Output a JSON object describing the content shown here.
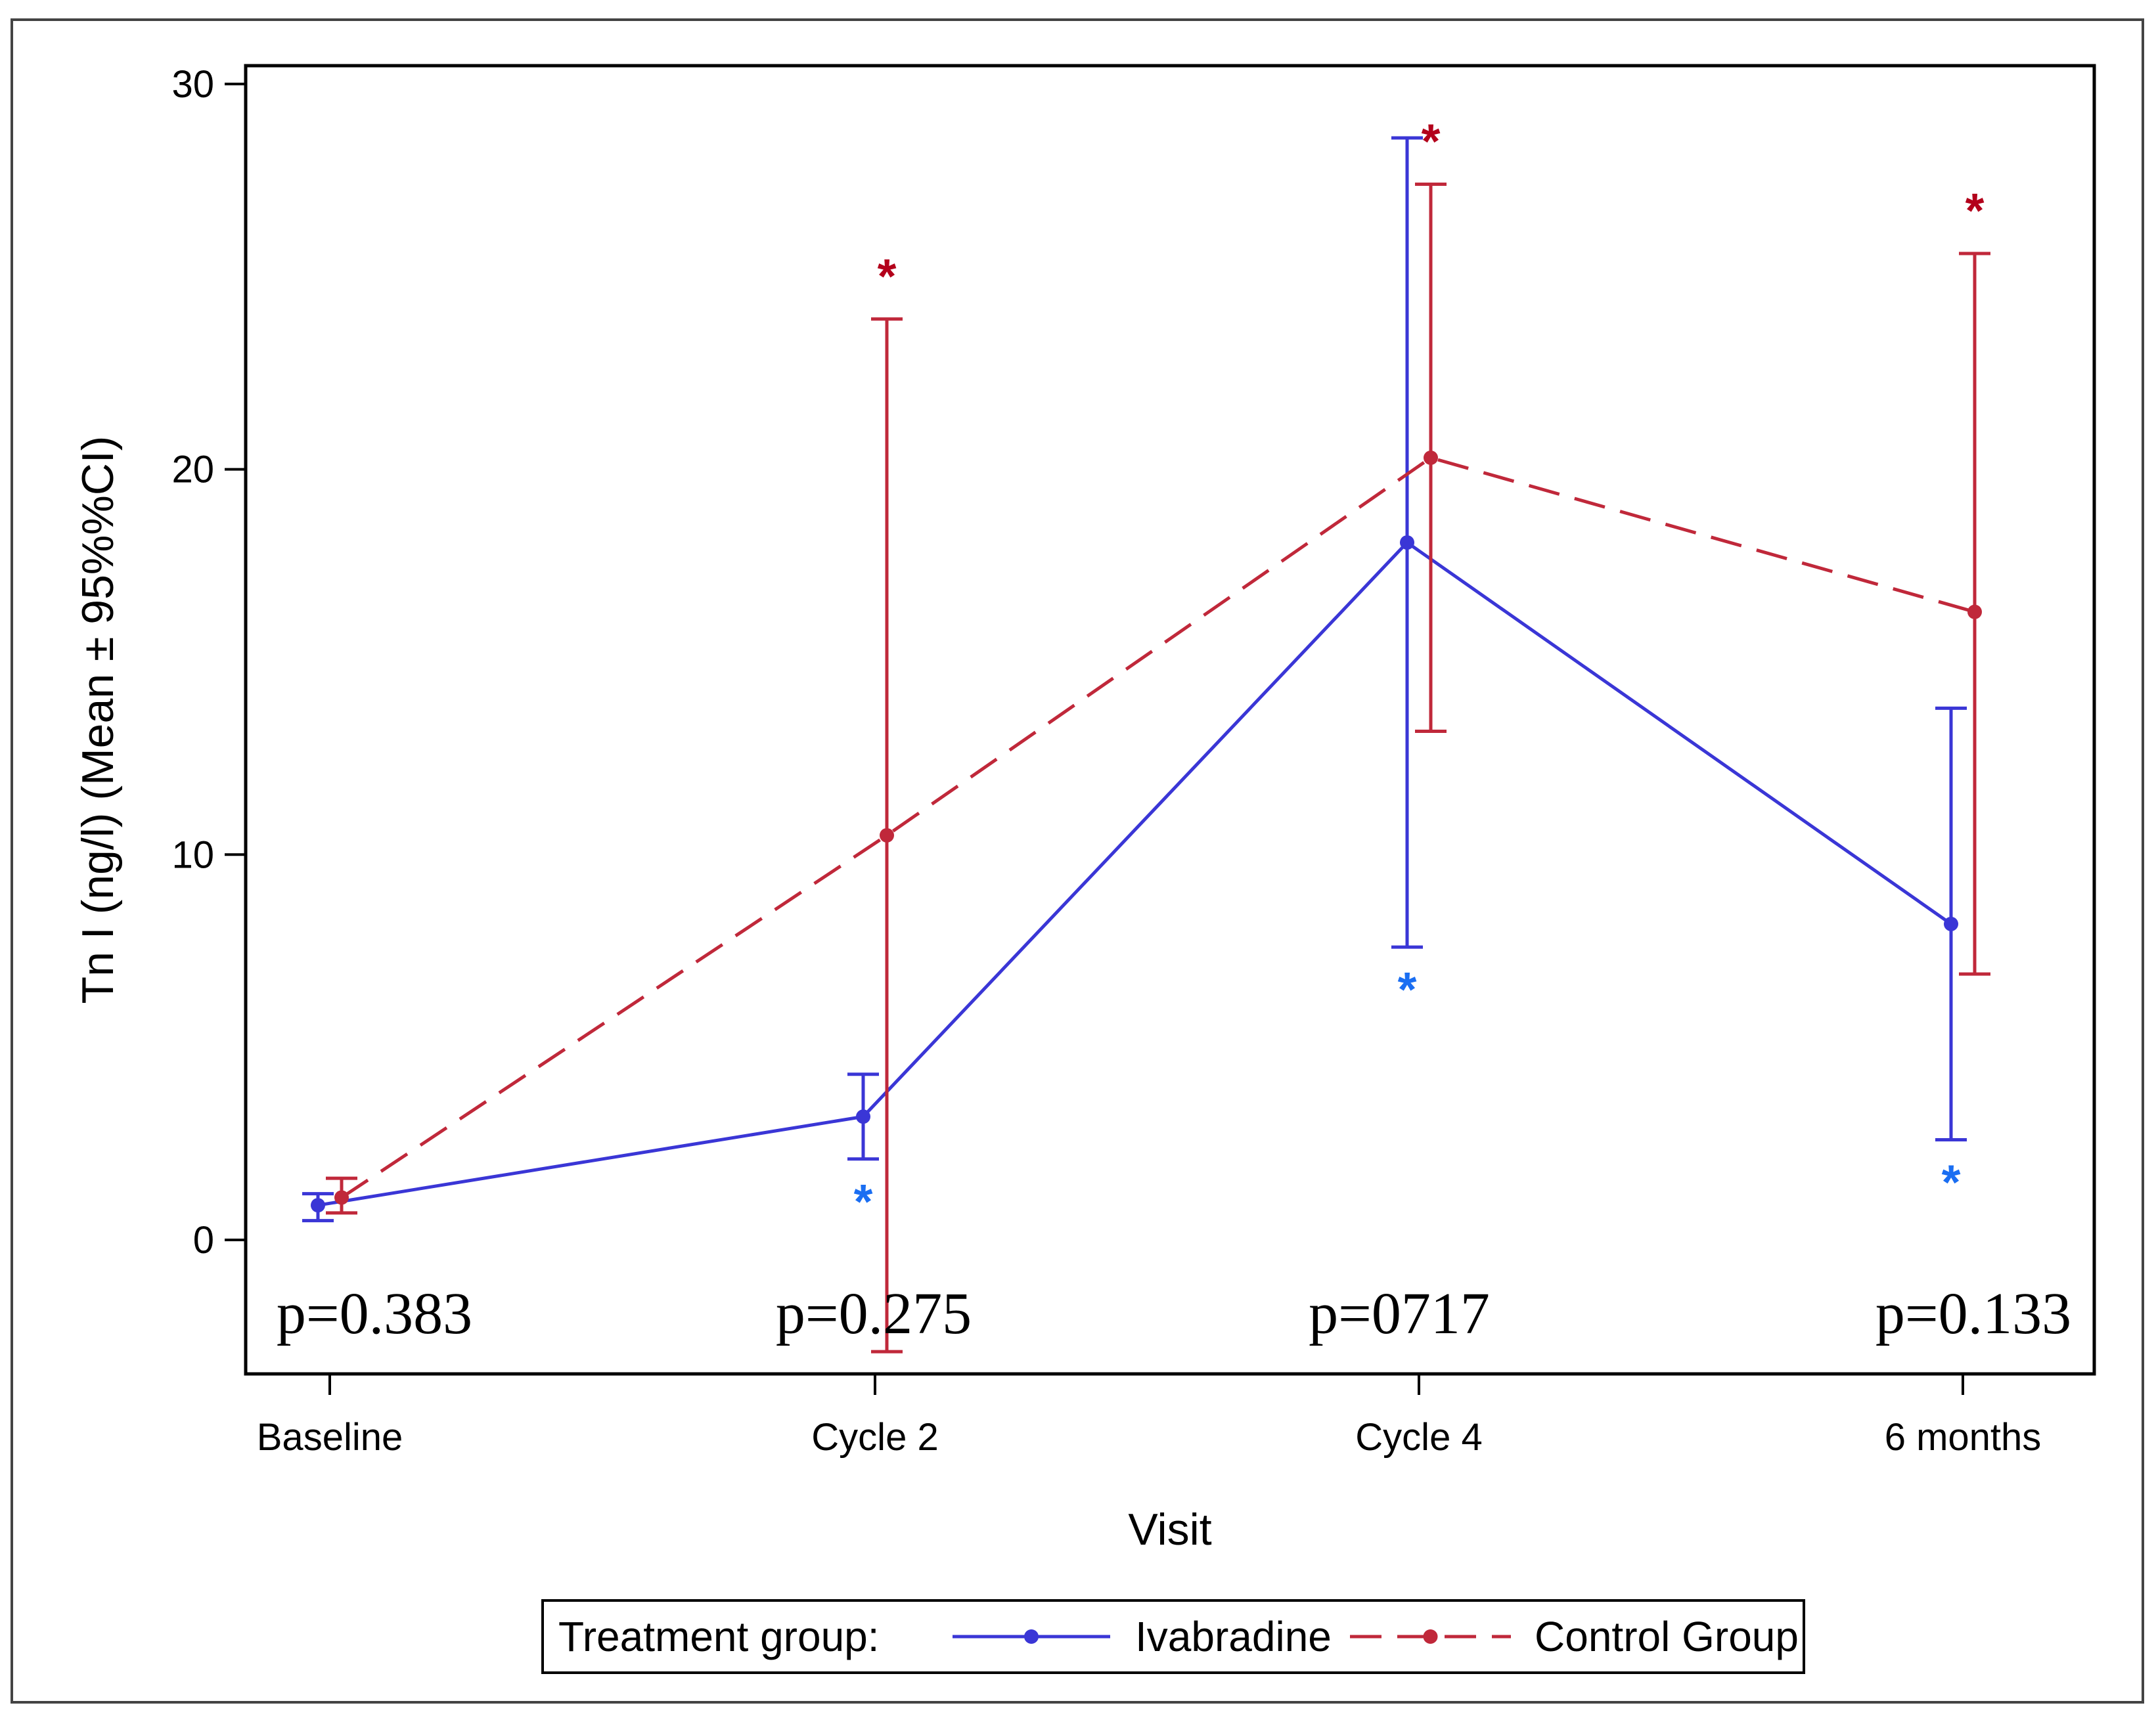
{
  "chart_data": {
    "type": "line",
    "title": "",
    "xlabel": "Visit",
    "ylabel": "Tn I  (ng/l) (Mean ± 95%%CI)",
    "ylim": [
      -3,
      30
    ],
    "yticks": [
      0,
      10,
      20,
      30
    ],
    "categories": [
      "Baseline",
      "Cycle 2",
      "Cycle 4",
      "6 months"
    ],
    "series": [
      {
        "name": "Ivabradine",
        "color": "#3a36d6",
        "dash": "solid",
        "values": [
          0.9,
          3.2,
          18.1,
          8.2
        ],
        "ci_lower": [
          0.5,
          2.1,
          7.6,
          2.6
        ],
        "ci_upper": [
          1.2,
          4.3,
          28.6,
          13.8
        ],
        "significance_markers": [
          "",
          "*",
          "*",
          "*"
        ],
        "marker_color": "#1a6ef2"
      },
      {
        "name": "Control Group",
        "color": "#c0283a",
        "dash": "dashed",
        "values": [
          1.1,
          10.5,
          20.3,
          16.3
        ],
        "ci_lower": [
          0.7,
          -2.9,
          13.2,
          6.9
        ],
        "ci_upper": [
          1.6,
          23.9,
          27.4,
          25.6
        ],
        "significance_markers": [
          "",
          "*",
          "*",
          "*"
        ],
        "marker_color": "#b3001b"
      }
    ],
    "p_values": [
      "p=0.383",
      "p=0.275",
      "p=0717",
      "p=0.133"
    ],
    "legend": {
      "title": "Treatment group:",
      "position": "bottom-center",
      "entries": [
        "Ivabradine",
        "Control Group"
      ]
    }
  }
}
